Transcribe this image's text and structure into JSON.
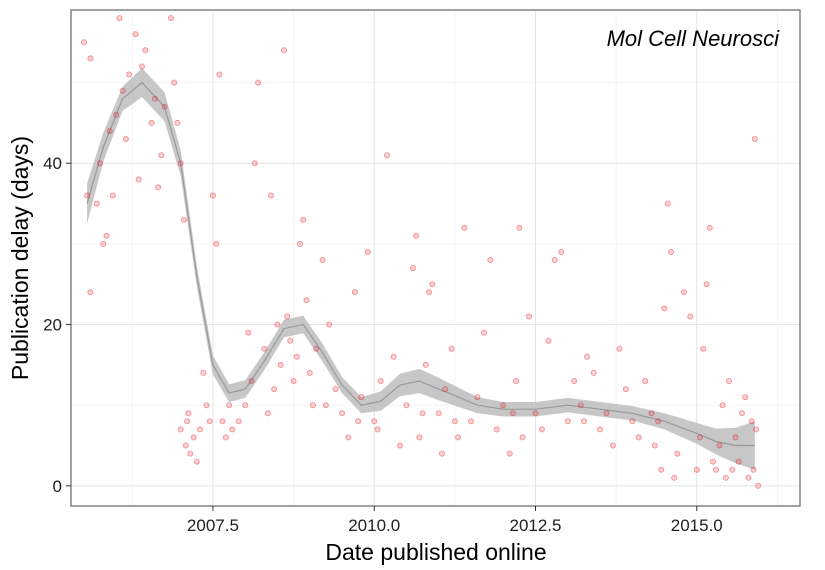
{
  "chart_data": {
    "type": "scatter",
    "annotation": "Mol Cell Neurosci",
    "xlabel": "Date published online",
    "ylabel": "Publication delay (days)",
    "xlim": [
      2005.3,
      2016.6
    ],
    "ylim": [
      -2.5,
      59
    ],
    "x_ticks": [
      2007.5,
      2010.0,
      2012.5,
      2015.0
    ],
    "x_tick_labels": [
      "2007.5",
      "2010.0",
      "2012.5",
      "2015.0"
    ],
    "y_ticks": [
      0,
      20,
      40
    ],
    "y_tick_labels": [
      "0",
      "20",
      "40"
    ],
    "grid": true,
    "point_color": "#e41a1c",
    "band_color": "#bdbdbd",
    "trend_color": "#999999",
    "smooth": {
      "x": [
        2005.55,
        2005.8,
        2006.1,
        2006.4,
        2006.75,
        2007.0,
        2007.25,
        2007.5,
        2007.75,
        2008.0,
        2008.3,
        2008.6,
        2008.9,
        2009.2,
        2009.5,
        2009.8,
        2010.1,
        2010.4,
        2010.7,
        2011.0,
        2011.3,
        2011.6,
        2012.0,
        2012.5,
        2013.0,
        2013.5,
        2014.0,
        2014.5,
        2015.0,
        2015.3,
        2015.6,
        2015.9
      ],
      "y": [
        35,
        42,
        48,
        50,
        47,
        40,
        26,
        15,
        11.5,
        12,
        15.5,
        19.5,
        20,
        16.5,
        12.5,
        10,
        10.5,
        12.5,
        13,
        12,
        11,
        10,
        9.5,
        9.5,
        10,
        9.5,
        9,
        8,
        6.5,
        5.5,
        5,
        5
      ],
      "half": [
        2.5,
        1.8,
        1.5,
        1.8,
        1.8,
        1.6,
        1.3,
        1.2,
        1.1,
        1.1,
        1.1,
        1.1,
        1.1,
        1.1,
        1.0,
        1.0,
        1.2,
        1.4,
        1.5,
        1.4,
        1.2,
        1.0,
        0.9,
        0.9,
        0.9,
        0.9,
        0.9,
        1.0,
        1.3,
        1.6,
        2.2,
        3.0
      ]
    },
    "points": [
      [
        5.5,
        55
      ],
      [
        5.6,
        53
      ],
      [
        5.55,
        36
      ],
      [
        5.6,
        24
      ],
      [
        5.7,
        35
      ],
      [
        5.8,
        30
      ],
      [
        5.75,
        40
      ],
      [
        5.9,
        44
      ],
      [
        6.0,
        46
      ],
      [
        6.1,
        49
      ],
      [
        6.05,
        58
      ],
      [
        6.2,
        51
      ],
      [
        6.3,
        56
      ],
      [
        6.4,
        52
      ],
      [
        6.45,
        54
      ],
      [
        6.55,
        45
      ],
      [
        6.6,
        48
      ],
      [
        6.7,
        41
      ],
      [
        6.75,
        47
      ],
      [
        6.85,
        58
      ],
      [
        6.9,
        50
      ],
      [
        6.95,
        45
      ],
      [
        6.65,
        37
      ],
      [
        6.35,
        38
      ],
      [
        6.15,
        43
      ],
      [
        5.85,
        31
      ],
      [
        5.95,
        36
      ],
      [
        7.0,
        40
      ],
      [
        7.05,
        33
      ],
      [
        7.0,
        7
      ],
      [
        7.08,
        5
      ],
      [
        7.12,
        9
      ],
      [
        7.15,
        4
      ],
      [
        7.2,
        6
      ],
      [
        7.25,
        3
      ],
      [
        7.35,
        14
      ],
      [
        7.4,
        10
      ],
      [
        7.5,
        36
      ],
      [
        7.55,
        30
      ],
      [
        7.6,
        51
      ],
      [
        7.65,
        8
      ],
      [
        7.7,
        6
      ],
      [
        7.8,
        7
      ],
      [
        7.9,
        8
      ],
      [
        8.0,
        10
      ],
      [
        8.05,
        19
      ],
      [
        8.1,
        13
      ],
      [
        8.15,
        40
      ],
      [
        8.2,
        50
      ],
      [
        8.3,
        17
      ],
      [
        8.4,
        36
      ],
      [
        8.45,
        12
      ],
      [
        8.5,
        20
      ],
      [
        8.55,
        15
      ],
      [
        8.6,
        54
      ],
      [
        8.65,
        21
      ],
      [
        8.7,
        18
      ],
      [
        8.75,
        13
      ],
      [
        8.8,
        16
      ],
      [
        8.85,
        30
      ],
      [
        8.9,
        33
      ],
      [
        8.95,
        23
      ],
      [
        9.0,
        14
      ],
      [
        9.1,
        17
      ],
      [
        9.2,
        28
      ],
      [
        9.25,
        10
      ],
      [
        9.3,
        20
      ],
      [
        9.4,
        12
      ],
      [
        9.5,
        9
      ],
      [
        9.6,
        6
      ],
      [
        9.7,
        24
      ],
      [
        9.8,
        11
      ],
      [
        9.9,
        29
      ],
      [
        10.0,
        8
      ],
      [
        10.05,
        7
      ],
      [
        10.1,
        13
      ],
      [
        10.2,
        41
      ],
      [
        10.3,
        16
      ],
      [
        10.4,
        5
      ],
      [
        10.5,
        10
      ],
      [
        10.6,
        27
      ],
      [
        10.65,
        31
      ],
      [
        10.7,
        6
      ],
      [
        10.8,
        15
      ],
      [
        10.85,
        24
      ],
      [
        10.9,
        25
      ],
      [
        11.0,
        9
      ],
      [
        11.05,
        4
      ],
      [
        11.1,
        12
      ],
      [
        11.2,
        17
      ],
      [
        11.3,
        6
      ],
      [
        11.4,
        32
      ],
      [
        11.5,
        8
      ],
      [
        11.6,
        11
      ],
      [
        11.7,
        19
      ],
      [
        11.8,
        28
      ],
      [
        11.9,
        7
      ],
      [
        12.0,
        10
      ],
      [
        12.1,
        4
      ],
      [
        12.2,
        13
      ],
      [
        12.25,
        32
      ],
      [
        12.3,
        6
      ],
      [
        12.4,
        21
      ],
      [
        12.5,
        9
      ],
      [
        12.6,
        7
      ],
      [
        12.7,
        18
      ],
      [
        12.8,
        28
      ],
      [
        12.9,
        29
      ],
      [
        13.0,
        8
      ],
      [
        13.1,
        13
      ],
      [
        13.2,
        10
      ],
      [
        13.3,
        16
      ],
      [
        13.4,
        14
      ],
      [
        13.5,
        7
      ],
      [
        13.6,
        9
      ],
      [
        13.7,
        5
      ],
      [
        13.8,
        17
      ],
      [
        13.9,
        12
      ],
      [
        14.0,
        8
      ],
      [
        14.1,
        6
      ],
      [
        14.2,
        13
      ],
      [
        14.3,
        9
      ],
      [
        14.4,
        8
      ],
      [
        14.45,
        2
      ],
      [
        14.5,
        22
      ],
      [
        14.55,
        35
      ],
      [
        14.6,
        29
      ],
      [
        14.65,
        1
      ],
      [
        14.7,
        4
      ],
      [
        14.8,
        24
      ],
      [
        14.9,
        21
      ],
      [
        15.0,
        2
      ],
      [
        15.05,
        6
      ],
      [
        15.1,
        17
      ],
      [
        15.15,
        25
      ],
      [
        15.2,
        32
      ],
      [
        15.25,
        3
      ],
      [
        15.3,
        2
      ],
      [
        15.35,
        5
      ],
      [
        15.4,
        10
      ],
      [
        15.5,
        13
      ],
      [
        15.55,
        2
      ],
      [
        15.6,
        6
      ],
      [
        15.65,
        3
      ],
      [
        15.7,
        9
      ],
      [
        15.75,
        11
      ],
      [
        15.8,
        1
      ],
      [
        15.85,
        8
      ],
      [
        15.9,
        43
      ],
      [
        15.95,
        0
      ],
      [
        15.92,
        7
      ],
      [
        15.88,
        2
      ],
      [
        15.45,
        1
      ],
      [
        14.35,
        5
      ],
      [
        13.25,
        8
      ],
      [
        12.15,
        9
      ],
      [
        11.25,
        8
      ],
      [
        10.75,
        9
      ],
      [
        9.75,
        8
      ],
      [
        9.05,
        10
      ],
      [
        8.35,
        9
      ],
      [
        7.75,
        10
      ],
      [
        7.45,
        8
      ],
      [
        7.3,
        7
      ],
      [
        7.1,
        8
      ]
    ]
  }
}
